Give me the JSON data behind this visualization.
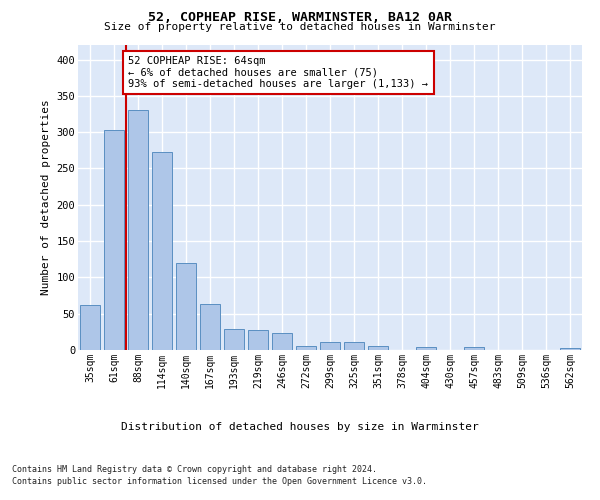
{
  "title": "52, COPHEAP RISE, WARMINSTER, BA12 0AR",
  "subtitle": "Size of property relative to detached houses in Warminster",
  "xlabel": "Distribution of detached houses by size in Warminster",
  "ylabel": "Number of detached properties",
  "categories": [
    "35sqm",
    "61sqm",
    "88sqm",
    "114sqm",
    "140sqm",
    "167sqm",
    "193sqm",
    "219sqm",
    "246sqm",
    "272sqm",
    "299sqm",
    "325sqm",
    "351sqm",
    "378sqm",
    "404sqm",
    "430sqm",
    "457sqm",
    "483sqm",
    "509sqm",
    "536sqm",
    "562sqm"
  ],
  "values": [
    62,
    303,
    330,
    272,
    120,
    63,
    29,
    28,
    24,
    6,
    11,
    11,
    5,
    0,
    4,
    0,
    4,
    0,
    0,
    0,
    3
  ],
  "bar_color": "#aec6e8",
  "bar_edge_color": "#5a8fc2",
  "vline_x": 1.5,
  "vline_color": "#cc0000",
  "annotation_text": "52 COPHEAP RISE: 64sqm\n← 6% of detached houses are smaller (75)\n93% of semi-detached houses are larger (1,133) →",
  "annotation_box_color": "#ffffff",
  "annotation_box_edge": "#cc0000",
  "ylim": [
    0,
    420
  ],
  "yticks": [
    0,
    50,
    100,
    150,
    200,
    250,
    300,
    350,
    400
  ],
  "background_color": "#ffffff",
  "plot_bg_color": "#dde8f8",
  "grid_color": "#ffffff",
  "footer_line1": "Contains HM Land Registry data © Crown copyright and database right 2024.",
  "footer_line2": "Contains public sector information licensed under the Open Government Licence v3.0."
}
